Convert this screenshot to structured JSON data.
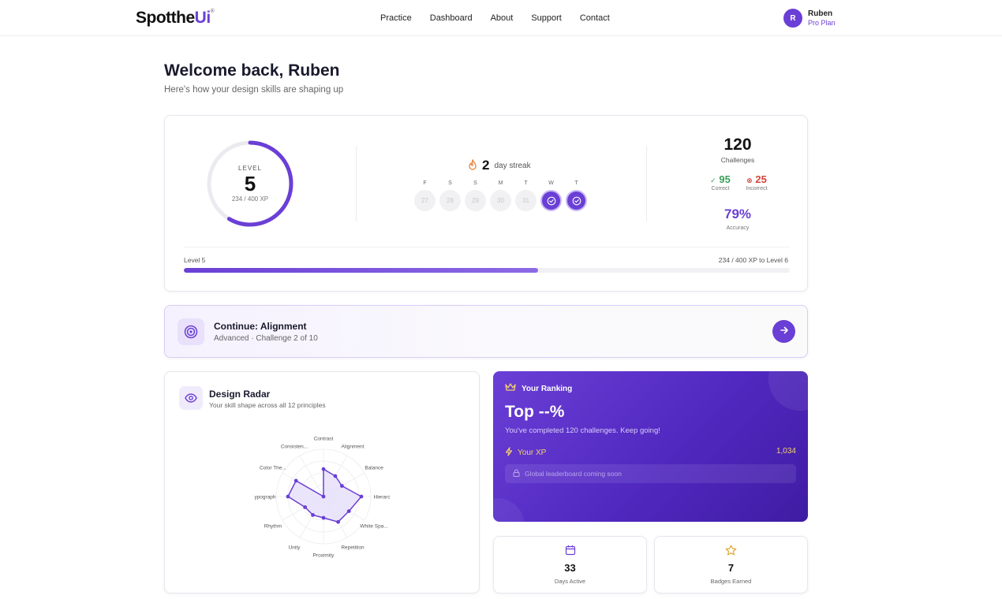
{
  "nav": {
    "logo_prefix": "Spotthe",
    "logo_accent": "Ui",
    "links": [
      "Practice",
      "Dashboard",
      "About",
      "Support",
      "Contact"
    ],
    "user": {
      "initial": "R",
      "name": "Ruben",
      "plan": "Pro Plan"
    }
  },
  "header": {
    "title": "Welcome back, Ruben",
    "subtitle": "Here's how your design skills are shaping up"
  },
  "stats": {
    "level_label": "LEVEL",
    "level": "5",
    "xp_text": "234 / 400 XP",
    "xp_fraction": 0.585,
    "streak_count": "2",
    "streak_label": "day streak",
    "days": [
      {
        "letter": "F",
        "num": "27",
        "done": false
      },
      {
        "letter": "S",
        "num": "28",
        "done": false
      },
      {
        "letter": "S",
        "num": "29",
        "done": false
      },
      {
        "letter": "M",
        "num": "30",
        "done": false
      },
      {
        "letter": "T",
        "num": "31",
        "done": false
      },
      {
        "letter": "W",
        "num": "",
        "done": true
      },
      {
        "letter": "T",
        "num": "",
        "done": true
      }
    ],
    "challenges": "120",
    "challenges_label": "Challenges",
    "correct": "95",
    "correct_label": "Correct",
    "incorrect": "25",
    "incorrect_label": "Incorrect",
    "accuracy": "79%",
    "accuracy_label": "Accuracy",
    "progress_left": "Level 5",
    "progress_right": "234 / 400 XP to Level 6"
  },
  "continue": {
    "title": "Continue: Alignment",
    "subtitle": "Advanced · Challenge 2 of 10"
  },
  "radar": {
    "title": "Design Radar",
    "subtitle": "Your skill shape across all 12 principles",
    "axes": [
      "Contrast",
      "Alignment",
      "Balance",
      "Hierarc",
      "White Spa...",
      "Repetition",
      "Proximity",
      "Unity",
      "Rhythm",
      "ypograph",
      "Color The...",
      "Consisten..."
    ],
    "values": [
      0.58,
      0.5,
      0.45,
      0.8,
      0.62,
      0.62,
      0.45,
      0.45,
      0.45,
      0.75,
      0.67,
      0.0
    ],
    "colors": {
      "stroke": "#6a3fd6",
      "fill": "#e8e0fa",
      "grid": "#ececf1"
    }
  },
  "ranking": {
    "heading": "Your Ranking",
    "top": "Top --%",
    "sub": "You've completed 120 challenges. Keep going!",
    "xp_label": "Your XP",
    "xp_value": "1,034",
    "leaderboard": "Global leaderboard coming soon"
  },
  "small_cards": [
    {
      "icon": "calendar-icon",
      "value": "33",
      "label": "Days Active"
    },
    {
      "icon": "star-icon",
      "value": "7",
      "label": "Badges Earned"
    }
  ],
  "colors": {
    "accent": "#6a3fd6",
    "correct": "#3aa05a",
    "incorrect": "#d6453a",
    "xp": "#f4d06b"
  }
}
